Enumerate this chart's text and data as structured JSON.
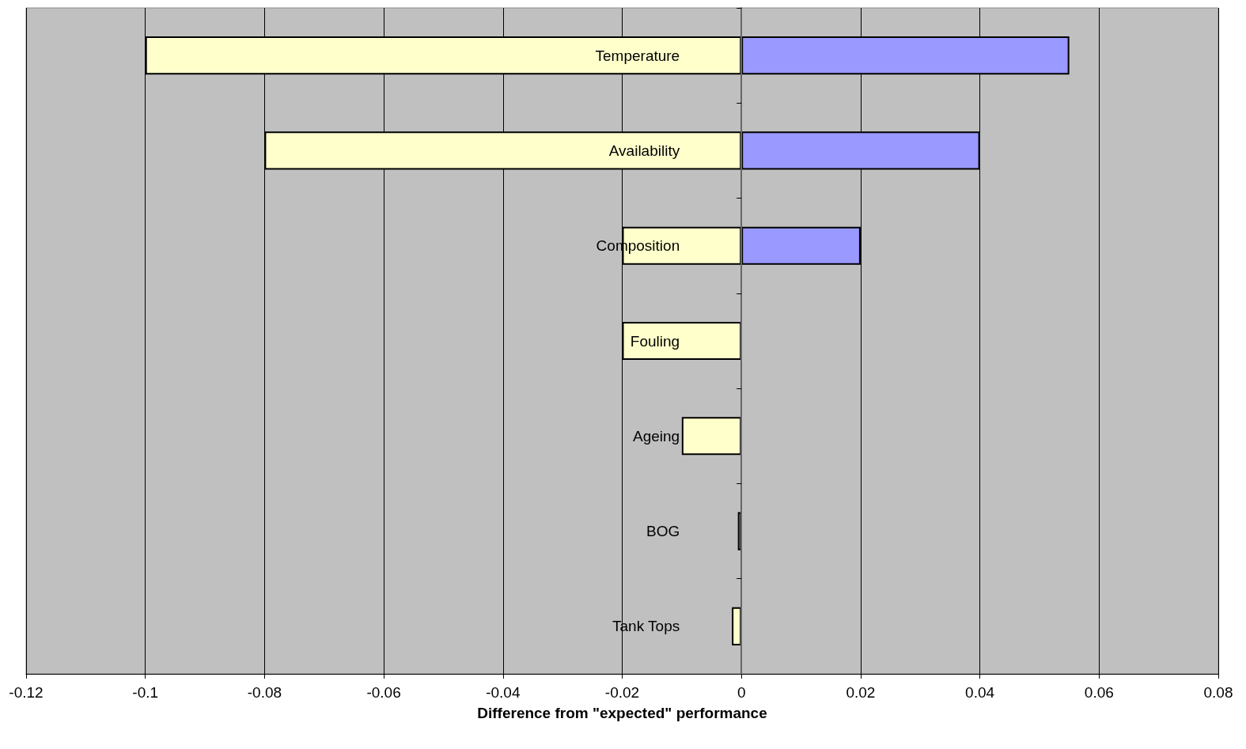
{
  "chart_data": {
    "type": "bar",
    "orientation": "horizontal",
    "stacked": true,
    "xlabel": "Difference from \"expected\" performance",
    "categories": [
      "Temperature",
      "Availability",
      "Composition",
      "Fouling",
      "Ageing",
      "BOG",
      "Tank Tops"
    ],
    "series": [
      {
        "color": "#ffffcc",
        "values": [
          -0.1,
          -0.08,
          -0.02,
          -0.02,
          -0.01,
          -0.0006,
          -0.0016
        ]
      },
      {
        "color": "#9999ff",
        "values": [
          0.055,
          0.04,
          0.02,
          null,
          null,
          null,
          null
        ]
      }
    ],
    "xlim": [
      -0.12,
      0.08
    ],
    "xticks": [
      -0.12,
      -0.1,
      -0.08,
      -0.06,
      -0.04,
      -0.02,
      0,
      0.02,
      0.04,
      0.06,
      0.08
    ],
    "grid": "x"
  }
}
